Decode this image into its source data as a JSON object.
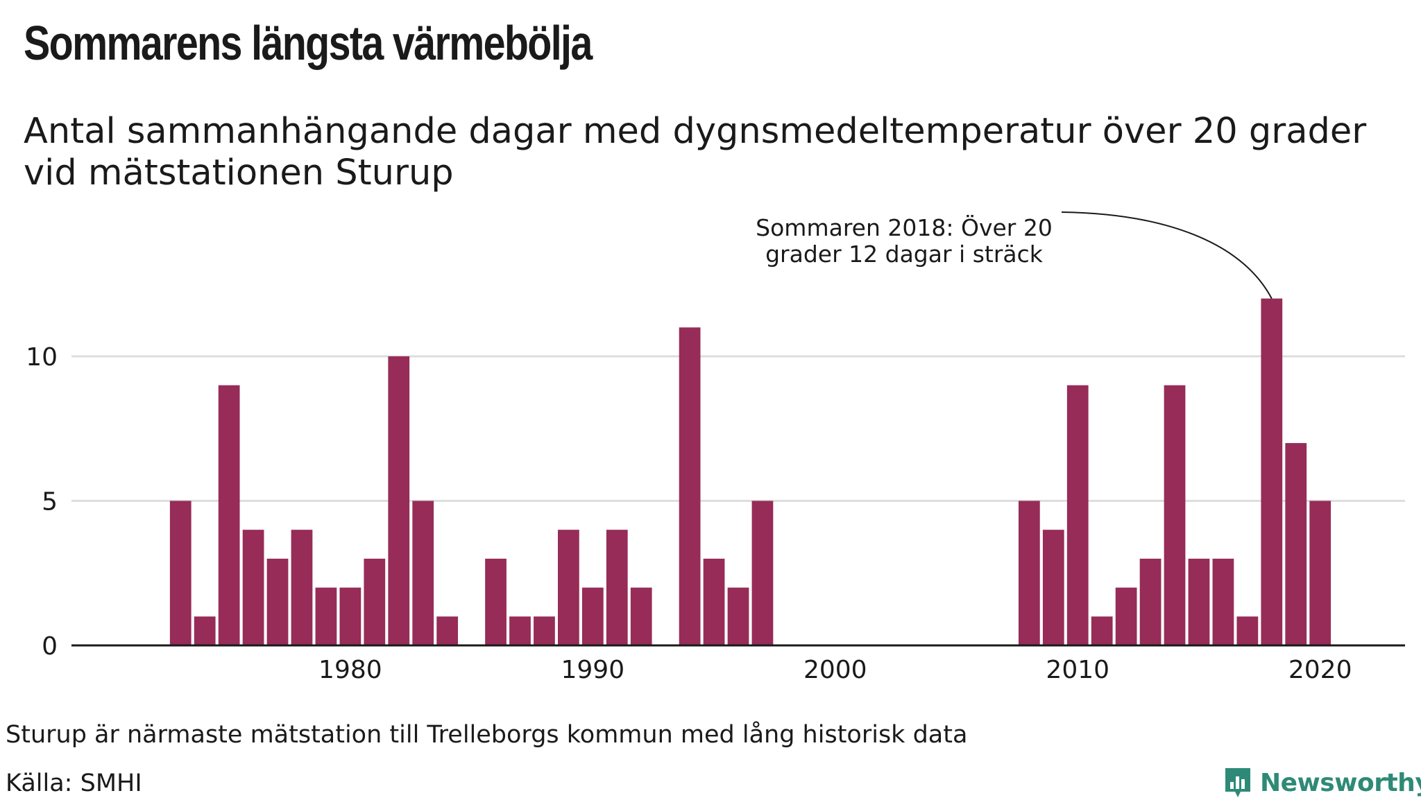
{
  "title": "Sommarens längsta värmebölja",
  "subtitle": "Antal sammanhängande dagar med dygnsmedeltemperatur över 20 grader vid mätstationen Sturup",
  "footnote": "Sturup är närmaste mätstation till Trelleborgs kommun med lång historisk data",
  "source": "Källa: SMHI",
  "brand": "Newsworthy",
  "colors": {
    "bar": "#962c57",
    "grid": "#dddddd",
    "axis": "#1a1a1a",
    "brand": "#2e8a76"
  },
  "chart_data": {
    "type": "bar",
    "title": "Sommarens längsta värmebölja",
    "xlabel": "",
    "ylabel": "",
    "x": [
      1973,
      1974,
      1975,
      1976,
      1977,
      1978,
      1979,
      1980,
      1981,
      1982,
      1983,
      1984,
      1985,
      1986,
      1987,
      1988,
      1989,
      1990,
      1991,
      1992,
      1993,
      1994,
      1995,
      1996,
      1997,
      1998,
      1999,
      2000,
      2001,
      2002,
      2003,
      2004,
      2005,
      2006,
      2007,
      2008,
      2009,
      2010,
      2011,
      2012,
      2013,
      2014,
      2015,
      2016,
      2017,
      2018,
      2019,
      2020
    ],
    "values": [
      5,
      1,
      9,
      4,
      3,
      4,
      2,
      2,
      3,
      10,
      5,
      1,
      0,
      3,
      1,
      1,
      4,
      2,
      4,
      2,
      0,
      11,
      3,
      2,
      5,
      0,
      0,
      0,
      0,
      0,
      0,
      0,
      0,
      0,
      0,
      5,
      4,
      9,
      1,
      2,
      3,
      9,
      3,
      3,
      1,
      12,
      7,
      5
    ],
    "xlim": [
      1968.5,
      2023.5
    ],
    "ylim": [
      0,
      13
    ],
    "x_ticks": [
      "1980",
      "1990",
      "2000",
      "2010",
      "2020"
    ],
    "y_ticks": [
      "0",
      "5",
      "10"
    ],
    "grid": true,
    "annotation": {
      "lines": [
        "Sommaren 2018: Över 20",
        "grader 12 dagar i sträck"
      ],
      "target_year": 2018
    }
  }
}
